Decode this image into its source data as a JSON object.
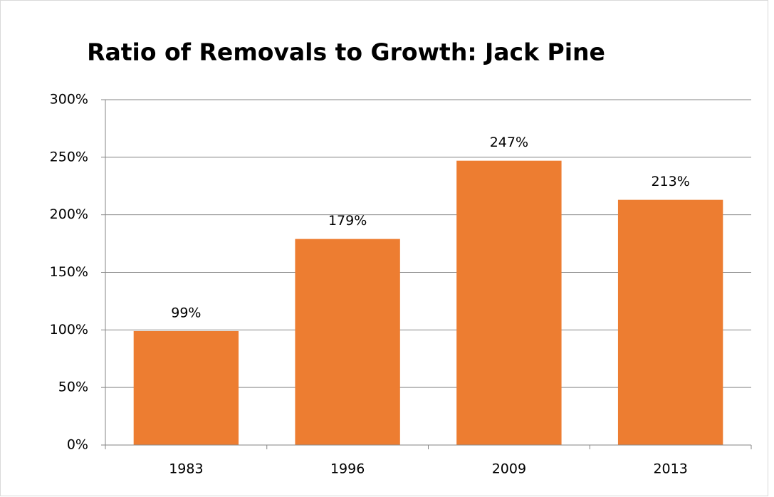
{
  "chart_data": {
    "type": "bar",
    "title": "Ratio of Removals to Growth: Jack Pine",
    "categories": [
      "1983",
      "1996",
      "2009",
      "2013"
    ],
    "values": [
      99,
      179,
      247,
      213
    ],
    "value_labels": [
      "99%",
      "179%",
      "247%",
      "213%"
    ],
    "color": "#ed7d31",
    "ylim": [
      0,
      300
    ],
    "yticks": [
      {
        "value": 0,
        "label": "0%"
      },
      {
        "value": 50,
        "label": "50%"
      },
      {
        "value": 100,
        "label": "100%"
      },
      {
        "value": 150,
        "label": "150%"
      },
      {
        "value": 200,
        "label": "200%"
      },
      {
        "value": 250,
        "label": "250%"
      },
      {
        "value": 300,
        "label": "300%"
      }
    ],
    "grid": true
  }
}
